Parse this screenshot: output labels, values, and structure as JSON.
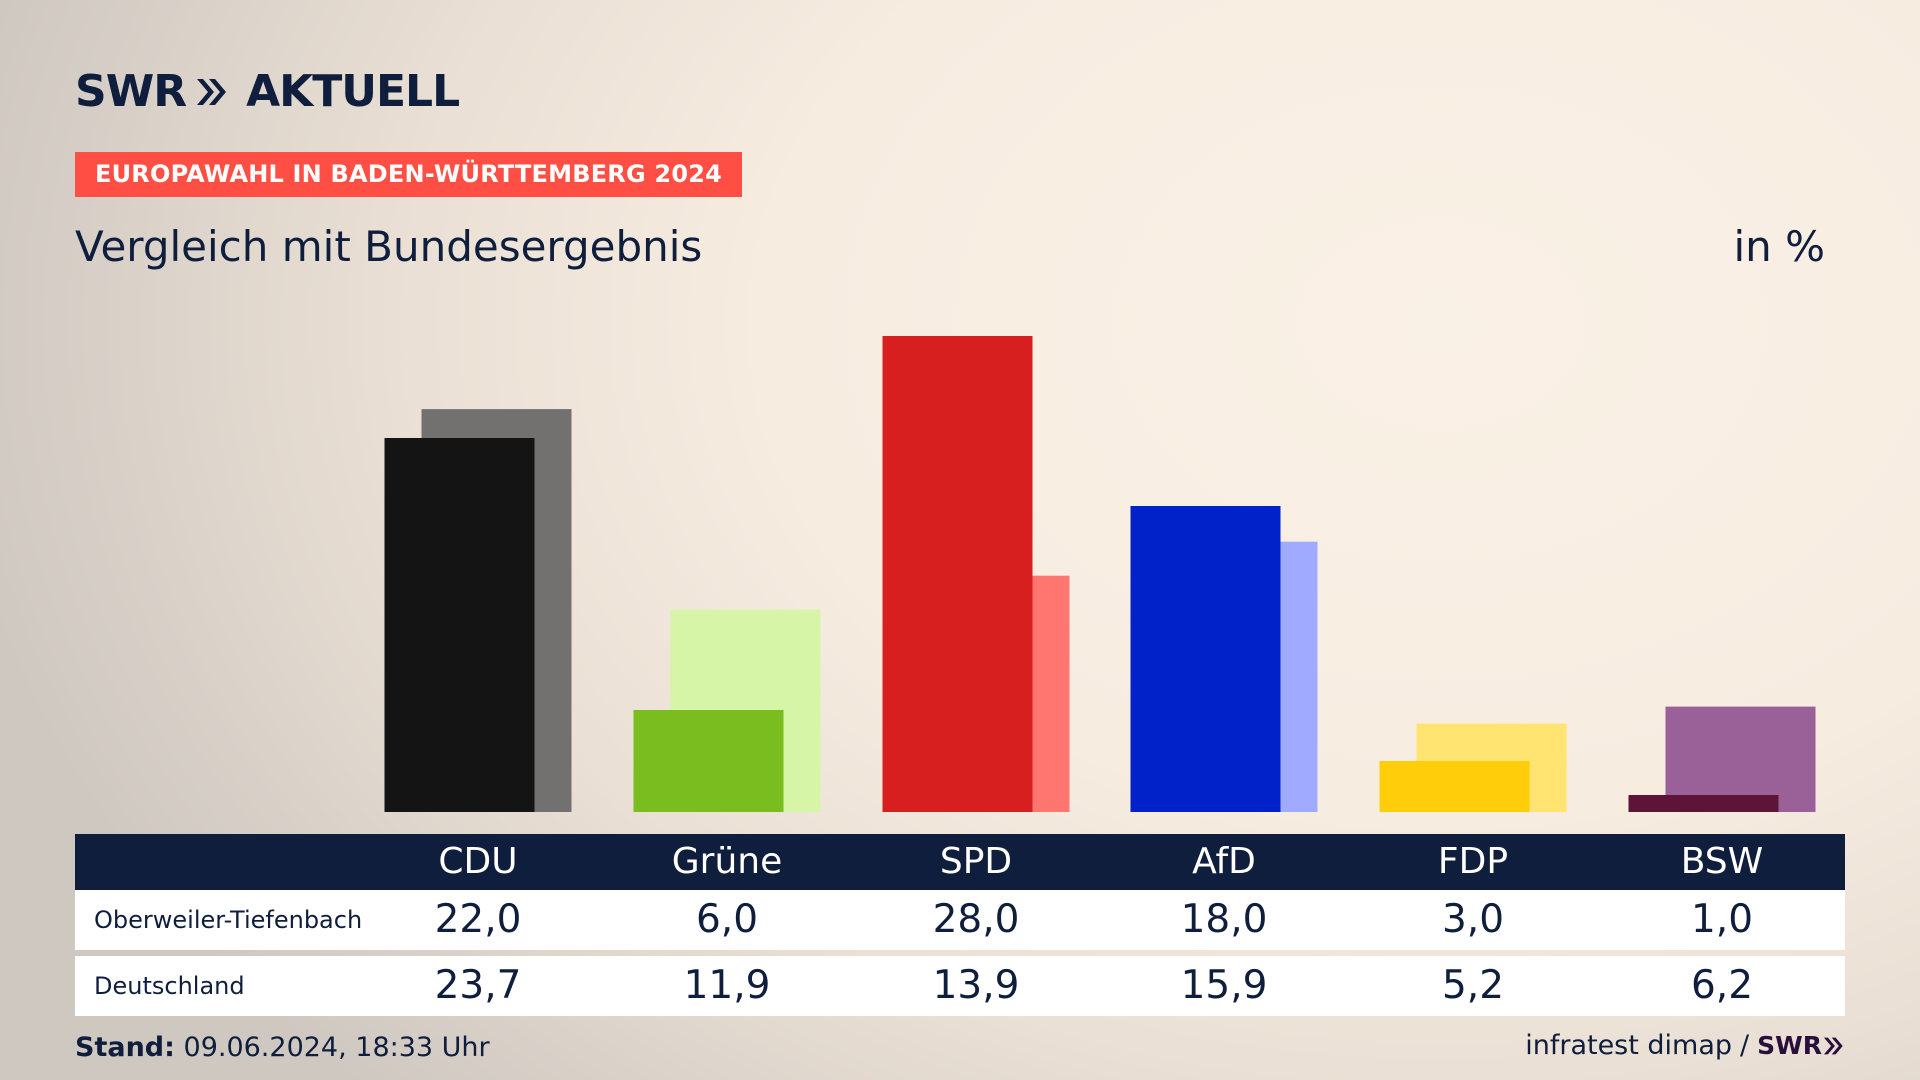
{
  "brand": {
    "swr": "SWR",
    "name": "AKTUELL"
  },
  "badge": "EUROPAWAHL IN BADEN-WÜRTTEMBERG 2024",
  "subtitle": "Vergleich mit Bundesergebnis",
  "unit": "in %",
  "table": {
    "row_labels": [
      "Oberweiler-Tiefenbach",
      "Deutschland"
    ]
  },
  "footer": {
    "stand_label": "Stand:",
    "stand_value": "09.06.2024, 18:33 Uhr",
    "source": "infratest dimap",
    "separator": "/",
    "source_brand": "SWR"
  },
  "chart_data": {
    "type": "bar",
    "categories": [
      "CDU",
      "Grüne",
      "SPD",
      "AfD",
      "FDP",
      "BSW"
    ],
    "categories_display": [
      "CDU",
      "Grüne",
      "SPD",
      "AfD",
      "FDP",
      "BSW"
    ],
    "series": [
      {
        "name": "Oberweiler-Tiefenbach",
        "values": [
          22.0,
          6.0,
          28.0,
          18.0,
          3.0,
          1.0
        ],
        "values_display": [
          "22,0",
          "6,0",
          "28,0",
          "18,0",
          "3,0",
          "1,0"
        ]
      },
      {
        "name": "Deutschland",
        "values": [
          23.7,
          11.9,
          13.9,
          15.9,
          5.2,
          6.2
        ],
        "values_display": [
          "23,7",
          "11,9",
          "13,9",
          "15,9",
          "5,2",
          "6,2"
        ]
      }
    ],
    "colors_primary": [
      "#141414",
      "#79bd1f",
      "#d81f1f",
      "#0022c8",
      "#ffcd0a",
      "#5e1438"
    ],
    "colors_secondary": [
      "#737170",
      "#d7f5a6",
      "#ff7570",
      "#a0abff",
      "#ffe472",
      "#9a6098"
    ],
    "ylim": [
      0,
      30
    ],
    "legend": "table-below",
    "grid": false
  }
}
